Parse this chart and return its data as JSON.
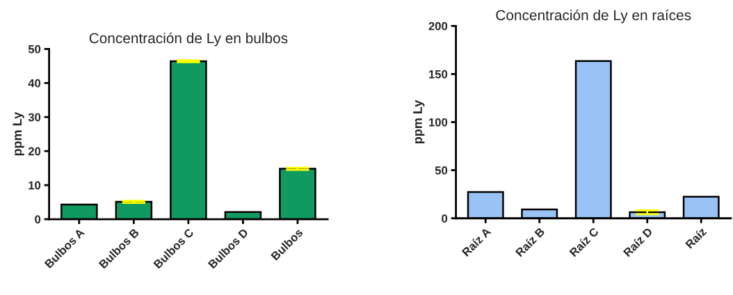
{
  "chart_data": [
    {
      "type": "bar",
      "title": "Concentración de Ly en bulbos",
      "ylabel": "ppm Ly",
      "categories": [
        "Bulbos A",
        "Bulbos B",
        "Bulbos C",
        "Bulbos D",
        "Bulbos"
      ],
      "series": [
        {
          "color": "#109a60",
          "values": [
            4.3,
            5.1,
            46.4,
            2.1,
            14.8
          ],
          "errors": [
            null,
            0.3,
            0.3,
            null,
            0.3
          ]
        }
      ],
      "ylim": [
        0,
        50
      ],
      "yticks": [
        0,
        10,
        20,
        30,
        40,
        50
      ],
      "grid": false,
      "legend": false
    },
    {
      "type": "bar",
      "title": "Concentración de Ly en raíces",
      "ylabel": "ppm Ly",
      "categories": [
        "Raíz A",
        "Raíz B",
        "Raíz C",
        "Raíz D",
        "Raíz"
      ],
      "series": [
        {
          "color": "#99c3f5",
          "values": [
            27.3,
            9.2,
            163.5,
            6.3,
            22.5
          ],
          "errors": [
            null,
            null,
            null,
            2,
            null
          ]
        }
      ],
      "ylim": [
        0,
        200
      ],
      "yticks": [
        0,
        50,
        100,
        150,
        200
      ],
      "grid": false,
      "legend": false
    }
  ]
}
